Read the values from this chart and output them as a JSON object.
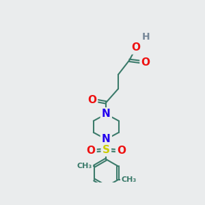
{
  "bg_color": "#eaeced",
  "bond_color": "#3a7a6a",
  "bond_width": 1.5,
  "atom_colors": {
    "O": "#ee1111",
    "N": "#2200ee",
    "S": "#cccc00",
    "H": "#778899",
    "C": "#3a7a6a"
  },
  "font_size": 11
}
